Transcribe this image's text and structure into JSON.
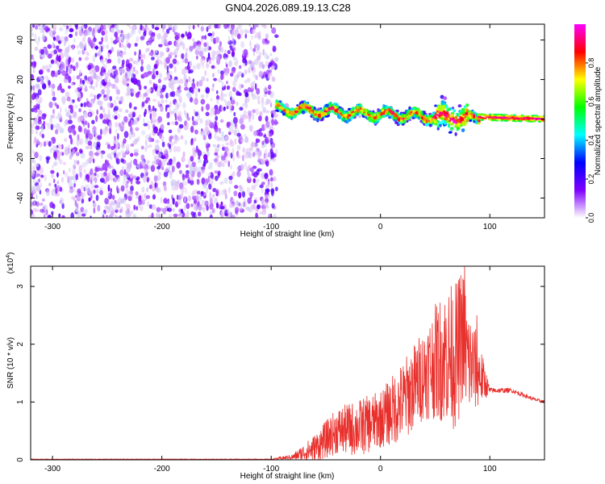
{
  "figure": {
    "title": "GN04.2026.089.19.13.C28"
  },
  "chart_data": [
    {
      "type": "heatmap",
      "title": "GN04.2026.089.19.13.C28",
      "xlabel": "Height of straight line (km)",
      "ylabel": "Frequency (Hz)",
      "xlim": [
        -320,
        150
      ],
      "ylim": [
        -50,
        48
      ],
      "xticks": [
        -300,
        -200,
        -100,
        0,
        100
      ],
      "yticks": [
        -40,
        -20,
        0,
        20,
        40
      ],
      "colorbar": {
        "label": "Normalized spectral amplitude",
        "range": [
          0,
          1
        ],
        "ticks": [
          0.0,
          0.2,
          0.4,
          0.6,
          0.8
        ],
        "tick_labels": [
          "0.0",
          "0.2",
          "0.4",
          "0.6",
          "0.8"
        ],
        "colormap": [
          "#ffffff",
          "#7f00ff",
          "#0000ff",
          "#00ffff",
          "#00ff00",
          "#ffff00",
          "#ff0000",
          "#ff00ff"
        ]
      },
      "regions": [
        {
          "x_range": [
            -320,
            -95
          ],
          "description_level": "scattered noise",
          "amplitude": [
            0.05,
            0.2
          ]
        },
        {
          "x_range": [
            -95,
            90
          ],
          "center_freq_hz": [
            5,
            0
          ],
          "amplitude": [
            0.3,
            0.9
          ]
        },
        {
          "x_range": [
            90,
            150
          ],
          "center_freq_hz": [
            1,
            0
          ],
          "amplitude": [
            0.7,
            1.0
          ]
        }
      ],
      "grid": false
    },
    {
      "type": "line",
      "xlabel": "Height of straight line (km)",
      "ylabel": "SNR (10 * v/v)",
      "y_multiplier": "(x10^4)",
      "y_multiplier_base": "(x10",
      "y_multiplier_exp": "4",
      "y_multiplier_close": ")",
      "xlim": [
        -320,
        150
      ],
      "ylim": [
        0,
        3.35
      ],
      "xticks": [
        -300,
        -200,
        -100,
        0,
        100
      ],
      "yticks": [
        0,
        1,
        2,
        3
      ],
      "color": "#e8302c",
      "series": [
        {
          "x": [
            -320,
            -200,
            -100,
            -80,
            -60,
            -40,
            -20,
            0,
            20,
            40,
            50,
            60,
            70,
            75,
            80,
            90,
            100,
            120,
            140,
            150
          ],
          "y": [
            0.01,
            0.01,
            0.01,
            0.05,
            0.2,
            0.5,
            0.55,
            0.7,
            1.0,
            1.5,
            1.7,
            1.8,
            1.8,
            2.2,
            1.7,
            1.5,
            1.2,
            1.2,
            1.05,
            1.0
          ],
          "noise_amplitude": [
            0.005,
            0.005,
            0.005,
            0.05,
            0.25,
            0.4,
            0.5,
            0.5,
            0.7,
            0.8,
            1.0,
            1.2,
            1.3,
            1.2,
            1.0,
            0.6,
            0.05,
            0.04,
            0.03,
            0.03
          ],
          "peaks": [
            {
              "x": 77,
              "y": 3.35
            },
            {
              "x": 88,
              "y": 2.5
            },
            {
              "x": 60,
              "y": 2.45
            }
          ]
        }
      ]
    }
  ]
}
